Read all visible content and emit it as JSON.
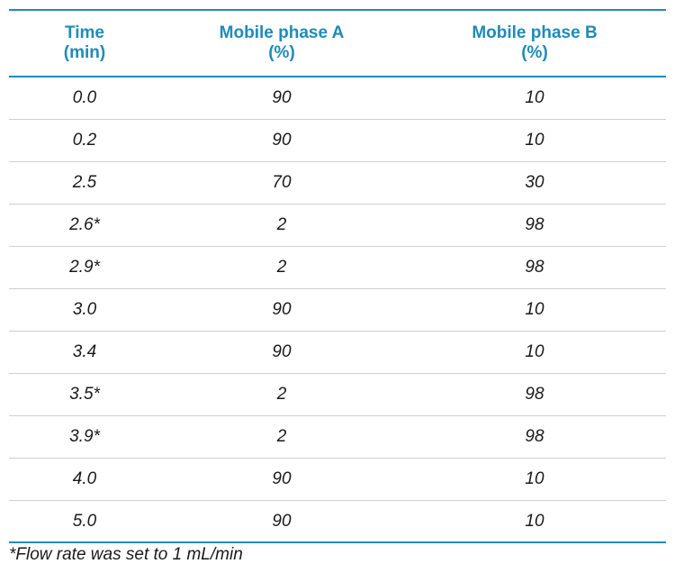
{
  "table": {
    "headers": {
      "time": [
        "Time",
        "(min)"
      ],
      "phase_a": [
        "Mobile phase A",
        "(%)"
      ],
      "phase_b": [
        "Mobile phase B",
        "(%)"
      ]
    },
    "rows": [
      {
        "time": "0.0",
        "a": "90",
        "b": "10"
      },
      {
        "time": "0.2",
        "a": "90",
        "b": "10"
      },
      {
        "time": "2.5",
        "a": "70",
        "b": "30"
      },
      {
        "time": "2.6*",
        "a": "2",
        "b": "98"
      },
      {
        "time": "2.9*",
        "a": "2",
        "b": "98"
      },
      {
        "time": "3.0",
        "a": "90",
        "b": "10"
      },
      {
        "time": "3.4",
        "a": "90",
        "b": "10"
      },
      {
        "time": "3.5*",
        "a": "2",
        "b": "98"
      },
      {
        "time": "3.9*",
        "a": "2",
        "b": "98"
      },
      {
        "time": "4.0",
        "a": "90",
        "b": "10"
      },
      {
        "time": "5.0",
        "a": "90",
        "b": "10"
      }
    ]
  },
  "footnote": "*Flow rate was set to 1 mL/min",
  "colors": {
    "accent": "#1f8bb8",
    "row_divider": "#cfcfcf",
    "text": "#1a1a1a"
  }
}
